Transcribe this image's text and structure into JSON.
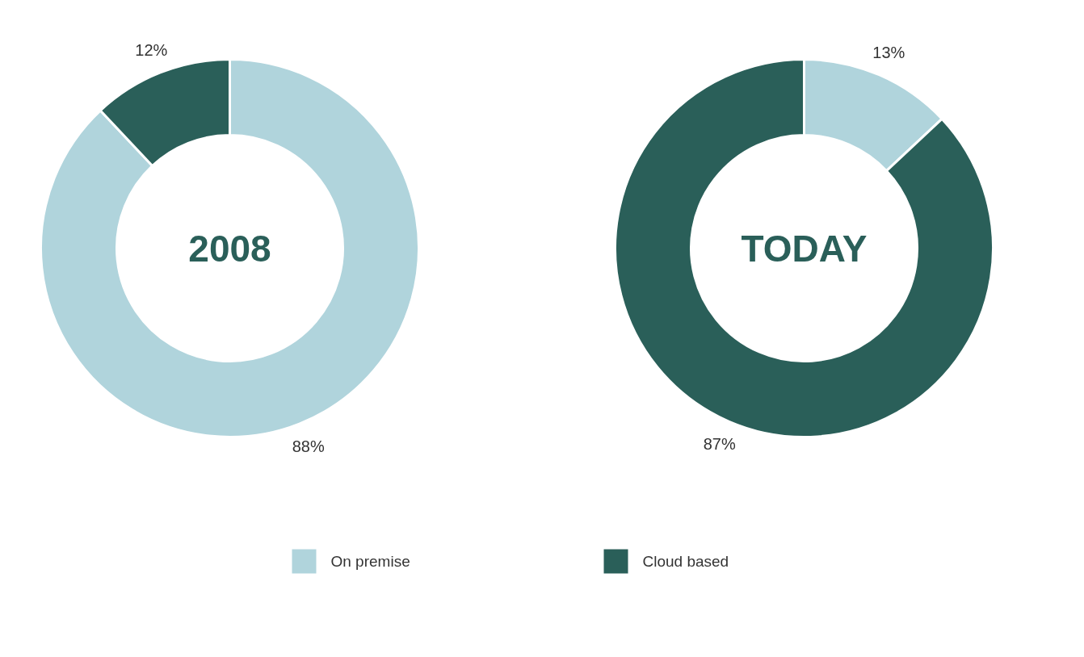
{
  "chart_data": {
    "type": "donut",
    "categories": [
      "On premise",
      "Cloud based"
    ],
    "colors": [
      "#b0d4dc",
      "#2a5f59"
    ],
    "legend": "bottom",
    "series": [
      {
        "name": "2008",
        "values": [
          88,
          12
        ],
        "value_labels": [
          "88%",
          "12%"
        ]
      },
      {
        "name": "TODAY",
        "values": [
          13,
          87
        ],
        "value_labels": [
          "13%",
          "87%"
        ]
      }
    ]
  }
}
